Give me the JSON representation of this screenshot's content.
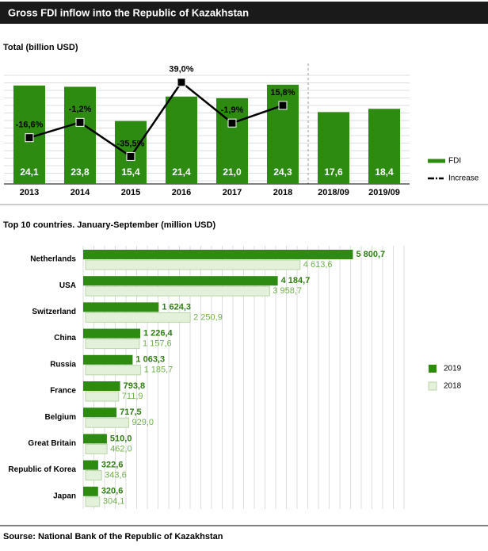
{
  "title": "Gross  FDI inflow into the Republic of Kazakhstan",
  "source": "Sourse: National Bank of the Republic  of Kazakhstan",
  "chart_data": [
    {
      "type": "bar_line",
      "title": "Total (billion  USD)",
      "categories": [
        "2013",
        "2014",
        "2015",
        "2016",
        "2017",
        "2018",
        "2018/09",
        "2019/09"
      ],
      "ylim": [
        0,
        26.6
      ],
      "y2lim": [
        -63,
        46
      ],
      "series": [
        {
          "name": "FDI",
          "color": "#2e8b12",
          "values": [
            24.1,
            23.8,
            15.4,
            21.4,
            21.0,
            24.3,
            17.6,
            18.4
          ],
          "value_labels": [
            "24,1",
            "23,8",
            "15,4",
            "21,4",
            "21,0",
            "24,3",
            "17,6",
            "18,4"
          ]
        },
        {
          "name": "Increase",
          "color": "#000000",
          "axis": "y2",
          "values": [
            -16.6,
            -1.2,
            -35.5,
            39.0,
            -1.9,
            15.8,
            null,
            null
          ],
          "value_labels": [
            "-16,6%",
            "-1,2%",
            "-35,5%",
            "39,0%",
            "-1,9%",
            "15,8%",
            null,
            null
          ]
        }
      ]
    },
    {
      "type": "hbar",
      "title": "Top 10 countries. January-September (million  USD)",
      "categories": [
        "Netherlands",
        "USA",
        "Switzerland",
        "China",
        "Russia",
        "France",
        "Belgium",
        "Great Britain",
        "Republic of Korea",
        "Japan"
      ],
      "xlim": [
        0,
        6900
      ],
      "series": [
        {
          "name": "2019",
          "color": "#2e8b12",
          "values": [
            5800.7,
            4184.7,
            1624.3,
            1226.4,
            1063.3,
            793.8,
            717.5,
            510.0,
            322.6,
            320.6
          ],
          "value_labels": [
            "5 800,7",
            "4 184,7",
            "1 624,3",
            "1 226,4",
            "1 063,3",
            "793,8",
            "717,5",
            "510,0",
            "322,6",
            "320,6"
          ]
        },
        {
          "name": "2018",
          "color": "#e3f0da",
          "values": [
            4613.6,
            3958.7,
            2250.9,
            1157.6,
            1185.7,
            711.9,
            929.0,
            462.0,
            343.6,
            304.1
          ],
          "value_labels": [
            "4 613,6",
            "3 958,7",
            "2 250,9",
            "1 157,6",
            "1 185,7",
            "711,9",
            "929,0",
            "462,0",
            "343,6",
            "304,1"
          ]
        }
      ]
    }
  ]
}
